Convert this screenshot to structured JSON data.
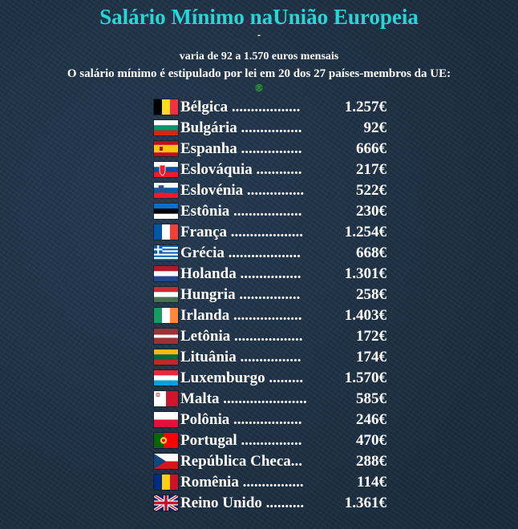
{
  "title": "Salário Mínimo naUnião Europeia",
  "dash": "-",
  "subtitle_range": "varia de 92 a 1.570 euros mensais",
  "subtitle_info": "O salário mínimo é estipulado por lei em 20 dos 27 países-membros da UE:",
  "mark": "®",
  "colors": {
    "title": "#27d6d6",
    "text": "#ffffff",
    "mark": "#1ec21e",
    "background": "#1f3145"
  },
  "countries": [
    {
      "name": "Bélgica ..................",
      "value": "1.257€",
      "flag": "belgium-flag"
    },
    {
      "name": "Bulgária ................",
      "value": "92€",
      "flag": "bulgaria-flag"
    },
    {
      "name": "Espanha ................",
      "value": "666€",
      "flag": "spain-flag"
    },
    {
      "name": "Eslováquia ............",
      "value": "217€",
      "flag": "slovakia-flag"
    },
    {
      "name": "Eslovénia ...............",
      "value": "522€",
      "flag": "slovenia-flag"
    },
    {
      "name": "Estônia ..................",
      "value": "230€",
      "flag": "estonia-flag"
    },
    {
      "name": "França ...................",
      "value": "1.254€",
      "flag": "france-flag"
    },
    {
      "name": "Grécia ...................",
      "value": "668€",
      "flag": "greece-flag"
    },
    {
      "name": "Holanda ................",
      "value": "1.301€",
      "flag": "netherlands-flag"
    },
    {
      "name": "Hungria ................",
      "value": "258€",
      "flag": "hungary-flag"
    },
    {
      "name": "Irlanda ..................",
      "value": "1.403€",
      "flag": "ireland-flag"
    },
    {
      "name": "Letônia ..................",
      "value": "172€",
      "flag": "latvia-flag"
    },
    {
      "name": "Lituânia ................",
      "value": "174€",
      "flag": "lithuania-flag"
    },
    {
      "name": "Luxemburgo .........",
      "value": "1.570€",
      "flag": "luxembourg-flag"
    },
    {
      "name": "Malta ......................",
      "value": "585€",
      "flag": "malta-flag"
    },
    {
      "name": "Polônia ..................",
      "value": "246€",
      "flag": "poland-flag"
    },
    {
      "name": "Portugal ................",
      "value": "470€",
      "flag": "portugal-flag"
    },
    {
      "name": "República Checa...",
      "value": "288€",
      "flag": "czech-republic-flag"
    },
    {
      "name": "Romênia ................",
      "value": "114€",
      "flag": "romania-flag"
    },
    {
      "name": "Reino Unido ..........",
      "value": "1.361€",
      "flag": "united-kingdom-flag"
    }
  ]
}
